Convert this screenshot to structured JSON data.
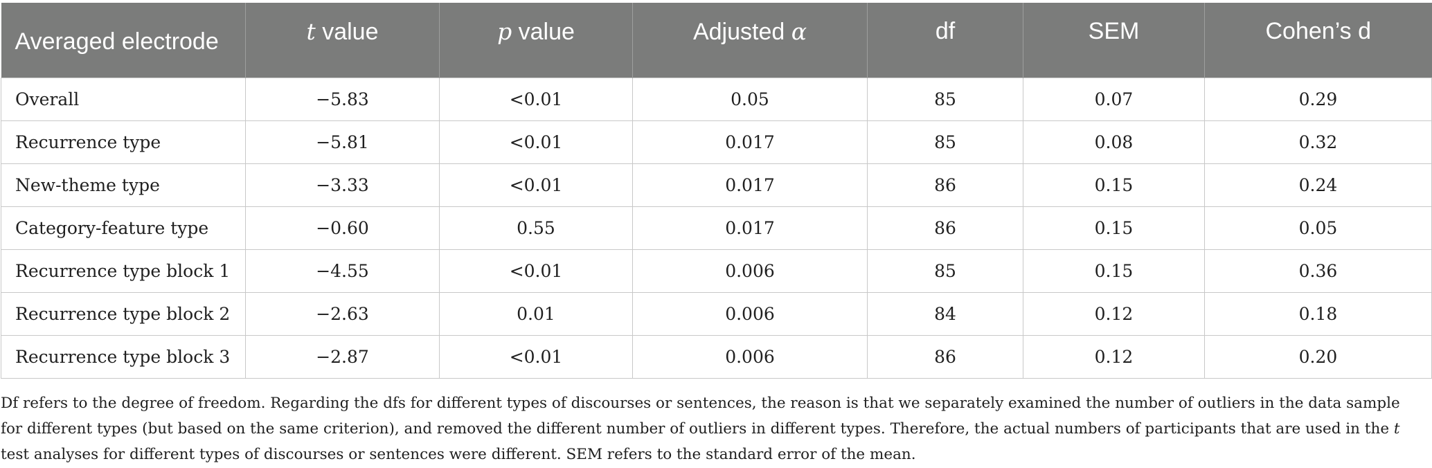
{
  "table": {
    "headers": [
      {
        "pre": "Averaged electrode",
        "italic": "",
        "post": ""
      },
      {
        "pre": "",
        "italic": "t",
        "post": " value"
      },
      {
        "pre": "",
        "italic": "p",
        "post": " value"
      },
      {
        "pre": "Adjusted ",
        "italic": "α",
        "post": ""
      },
      {
        "pre": "df",
        "italic": "",
        "post": ""
      },
      {
        "pre": "SEM",
        "italic": "",
        "post": ""
      },
      {
        "pre": "Cohen’s d",
        "italic": "",
        "post": ""
      }
    ],
    "rows": [
      [
        "Overall",
        "−5.83",
        "<0.01",
        "0.05",
        "85",
        "0.07",
        "0.29"
      ],
      [
        "Recurrence type",
        "−5.81",
        "<0.01",
        "0.017",
        "85",
        "0.08",
        "0.32"
      ],
      [
        "New-theme type",
        "−3.33",
        "<0.01",
        "0.017",
        "86",
        "0.15",
        "0.24"
      ],
      [
        "Category-feature type",
        "−0.60",
        "0.55",
        "0.017",
        "86",
        "0.15",
        "0.05"
      ],
      [
        "Recurrence type block 1",
        "−4.55",
        "<0.01",
        "0.006",
        "85",
        "0.15",
        "0.36"
      ],
      [
        "Recurrence type block 2",
        "−2.63",
        "0.01",
        "0.006",
        "84",
        "0.12",
        "0.18"
      ],
      [
        "Recurrence type block 3",
        "−2.87",
        "<0.01",
        "0.006",
        "86",
        "0.12",
        "0.20"
      ]
    ]
  },
  "footnote": {
    "part1": "Df refers to the degree of freedom. Regarding the dfs for different types of discourses or sentences, the reason is that we separately examined the number of outliers in the data sample for different types (but based on the same criterion), and removed the different number of outliers in different types. Therefore, the actual numbers of participants that are used in the ",
    "italic": "t",
    "part2": " test analyses for different types of discourses or sentences were different. SEM refers to the standard error of the mean."
  }
}
